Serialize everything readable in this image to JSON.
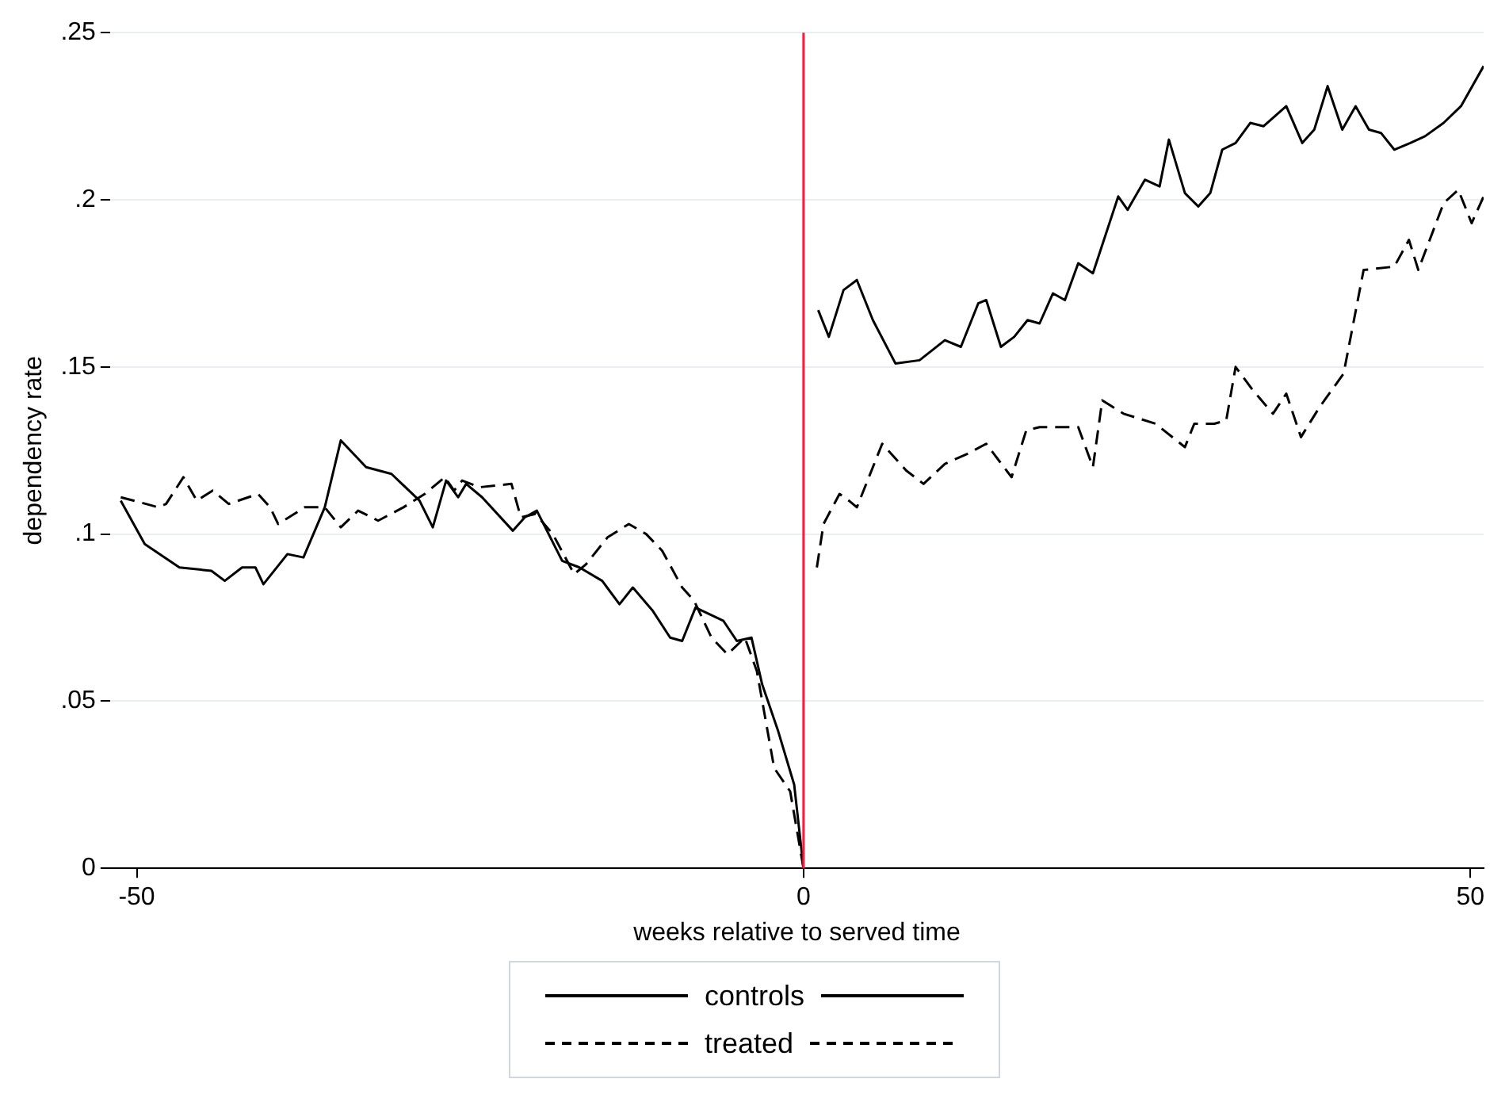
{
  "chart_data": {
    "type": "line",
    "xlabel": "weeks relative to served time",
    "ylabel": "dependency rate",
    "xlim": [
      -52,
      51
    ],
    "xticks": [
      -50,
      0,
      50
    ],
    "ylim": [
      0,
      0.25
    ],
    "yticks": [
      {
        "value": 0,
        "label": "0"
      },
      {
        "value": 0.05,
        "label": ".05"
      },
      {
        "value": 0.1,
        "label": ".1"
      },
      {
        "value": 0.15,
        "label": ".15"
      },
      {
        "value": 0.2,
        "label": ".2"
      },
      {
        "value": 0.25,
        "label": ".25"
      }
    ],
    "grid": "y",
    "legend": "bottom",
    "marker": "none",
    "ref_lines": [
      {
        "axis": "x",
        "value": 0,
        "color": "#ff1a3c"
      }
    ],
    "series": [
      {
        "name": "controls",
        "color": "#000000",
        "line_style": "solid",
        "x": [
          -51.2,
          -49.4,
          -46.8,
          -44.4,
          -43.4,
          -42.1,
          -41.1,
          -40.5,
          -38.7,
          -37.5,
          -35.9,
          -34.7,
          -32.8,
          -30.9,
          -28.8,
          -27.8,
          -26.8,
          -25.9,
          -25.3,
          -24.1,
          -21.8,
          -20.9,
          -20,
          -18.1,
          -16.8,
          -15.1,
          -13.8,
          -12.8,
          -11.3,
          -10,
          -9.1,
          -8.1,
          -6,
          -5,
          -3.9,
          -3.1,
          -1.9,
          -0.7,
          0,
          0.5,
          1.1,
          1.9,
          3,
          4,
          5.2,
          6.9,
          8.7,
          10.6,
          11.8,
          13.1,
          13.7,
          14.8,
          15.8,
          16.8,
          17.7,
          18.7,
          19.6,
          20.6,
          21.7,
          23.6,
          24.3,
          25.6,
          26.7,
          27.4,
          28.6,
          29.6,
          30.5,
          31.4,
          32.4,
          33.5,
          34.5,
          36.2,
          37.4,
          38.3,
          39.3,
          40.4,
          41.4,
          42.4,
          43.3,
          44.3,
          45.5,
          46.6,
          48,
          49.3,
          51
        ],
        "values": [
          0.11,
          0.097,
          0.09,
          0.089,
          0.086,
          0.09,
          0.09,
          0.085,
          0.094,
          0.093,
          0.108,
          0.128,
          0.12,
          0.118,
          0.11,
          0.102,
          0.116,
          0.111,
          0.115,
          0.111,
          0.101,
          0.105,
          0.107,
          0.092,
          0.09,
          0.086,
          0.079,
          0.084,
          0.077,
          0.069,
          0.068,
          0.078,
          0.074,
          0.068,
          0.069,
          0.055,
          0.041,
          0.025,
          0,
          null,
          0.167,
          0.159,
          0.173,
          0.176,
          0.164,
          0.151,
          0.152,
          0.158,
          0.156,
          0.169,
          0.17,
          0.156,
          0.159,
          0.164,
          0.163,
          0.172,
          0.17,
          0.181,
          0.178,
          0.201,
          0.197,
          0.206,
          0.204,
          0.218,
          0.202,
          0.198,
          0.202,
          0.215,
          0.217,
          0.223,
          0.222,
          0.228,
          0.217,
          0.221,
          0.234,
          0.221,
          0.228,
          0.221,
          0.22,
          0.215,
          0.217,
          0.219,
          0.223,
          0.228,
          0.24
        ]
      },
      {
        "name": "treated",
        "color": "#000000",
        "line_style": "dashed",
        "x": [
          -51.2,
          -49.3,
          -48.4,
          -47.8,
          -46.5,
          -45.5,
          -44.3,
          -43.1,
          -40.9,
          -40,
          -39.4,
          -37.4,
          -35.9,
          -34.7,
          -33.4,
          -31.9,
          -30,
          -28.4,
          -26.9,
          -26.2,
          -25.6,
          -24.3,
          -21.9,
          -21.2,
          -20.1,
          -18.8,
          -17.2,
          -16.3,
          -14.7,
          -13.1,
          -11.8,
          -10.6,
          -9.1,
          -8.2,
          -6.9,
          -5.7,
          -4.4,
          -3.5,
          -2.2,
          -1,
          0,
          0.5,
          1,
          1.5,
          2.7,
          3.4,
          4,
          5.9,
          7.7,
          9,
          10.6,
          12.3,
          13.7,
          15.6,
          16.7,
          17.7,
          19.3,
          20.6,
          21.7,
          22.4,
          24,
          24.8,
          26.4,
          28.6,
          29.3,
          30.8,
          31.7,
          32.4,
          33.7,
          35.2,
          36.2,
          37.3,
          38.7,
          40.5,
          42,
          44.3,
          45.4,
          46.1,
          48,
          49.1,
          50.1,
          51
        ],
        "values": [
          0.111,
          0.109,
          0.108,
          0.109,
          0.117,
          0.11,
          0.113,
          0.109,
          0.112,
          0.108,
          0.103,
          0.108,
          0.108,
          0.102,
          0.107,
          0.104,
          0.108,
          0.112,
          0.117,
          0.113,
          0.116,
          0.114,
          0.115,
          0.105,
          0.106,
          0.1,
          0.088,
          0.091,
          0.099,
          0.103,
          0.1,
          0.095,
          0.084,
          0.08,
          0.069,
          0.064,
          0.069,
          0.059,
          0.03,
          0.023,
          0,
          null,
          0.09,
          0.103,
          0.112,
          0.11,
          0.108,
          0.127,
          0.119,
          0.115,
          0.121,
          0.124,
          0.127,
          0.117,
          0.131,
          0.132,
          0.132,
          0.132,
          0.12,
          0.14,
          0.136,
          0.135,
          0.133,
          0.126,
          0.133,
          0.133,
          0.134,
          0.15,
          0.143,
          0.136,
          0.142,
          0.129,
          0.138,
          0.148,
          0.179,
          0.18,
          0.188,
          0.179,
          0.199,
          0.203,
          0.193,
          0.201
        ]
      }
    ]
  }
}
